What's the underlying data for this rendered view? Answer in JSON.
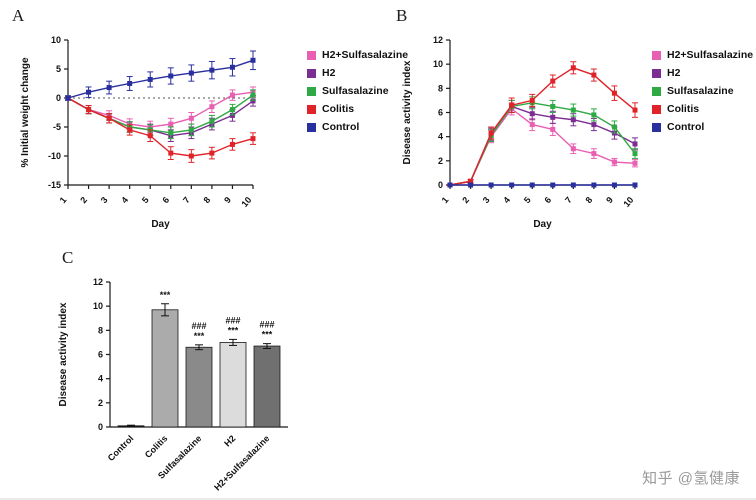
{
  "figure": {
    "panels": {
      "a": "A",
      "b": "B",
      "c": "C"
    },
    "watermark": "知乎 @氢健康"
  },
  "chart_data": [
    {
      "id": "A",
      "type": "line",
      "xlabel": "Day",
      "ylabel": "% Initial weight change",
      "x": [
        1,
        2,
        3,
        4,
        5,
        6,
        7,
        8,
        9,
        10
      ],
      "ylim": [
        -15,
        10
      ],
      "yticks": [
        -15,
        -10,
        -5,
        0,
        5,
        10
      ],
      "zero_line": true,
      "legend_position": "right",
      "series": [
        {
          "name": "H2+Sulfasalazine",
          "color": "#e95fb2",
          "values": [
            0,
            -2,
            -3,
            -4.5,
            -5,
            -4.5,
            -3.5,
            -1.5,
            0.5,
            1
          ],
          "errors": [
            0.3,
            0.7,
            0.8,
            0.9,
            1,
            1,
            1,
            1,
            0.9,
            0.9
          ]
        },
        {
          "name": "H2",
          "color": "#7b2d92",
          "values": [
            0,
            -2,
            -3.5,
            -5,
            -5.5,
            -6.5,
            -6,
            -4.5,
            -3,
            -0.5
          ],
          "errors": [
            0.3,
            0.7,
            0.8,
            0.9,
            1,
            1,
            1,
            1,
            1,
            0.9
          ]
        },
        {
          "name": "Sulfasalazine",
          "color": "#2fa944",
          "values": [
            0,
            -2,
            -3.5,
            -5,
            -5.5,
            -6,
            -5.5,
            -4,
            -2,
            0.5
          ],
          "errors": [
            0.3,
            0.7,
            0.8,
            0.9,
            0.9,
            1,
            1,
            1,
            0.9,
            0.9
          ]
        },
        {
          "name": "Colitis",
          "color": "#e02329",
          "values": [
            0,
            -2,
            -3.5,
            -5.5,
            -6.5,
            -9.5,
            -10,
            -9.5,
            -8,
            -7
          ],
          "errors": [
            0.3,
            0.7,
            0.8,
            0.9,
            1,
            1.1,
            1.1,
            1,
            1,
            1
          ]
        },
        {
          "name": "Control",
          "color": "#2a2f9e",
          "values": [
            0,
            1,
            1.8,
            2.5,
            3.2,
            3.8,
            4.3,
            4.8,
            5.3,
            6.5
          ],
          "errors": [
            0.4,
            0.9,
            1.1,
            1.2,
            1.3,
            1.4,
            1.4,
            1.5,
            1.5,
            1.6
          ]
        }
      ]
    },
    {
      "id": "B",
      "type": "line",
      "xlabel": "Day",
      "ylabel": "Disease activity index",
      "x": [
        1,
        2,
        3,
        4,
        5,
        6,
        7,
        8,
        9,
        10
      ],
      "ylim": [
        0,
        12
      ],
      "yticks": [
        0,
        2,
        4,
        6,
        8,
        10,
        12
      ],
      "zero_line": false,
      "legend_position": "right",
      "series": [
        {
          "name": "H2+Sulfasalazine",
          "color": "#e95fb2",
          "values": [
            0,
            0.3,
            4,
            6.3,
            5,
            4.6,
            3,
            2.6,
            1.9,
            1.8
          ],
          "errors": [
            0.05,
            0.15,
            0.5,
            0.5,
            0.5,
            0.5,
            0.4,
            0.4,
            0.3,
            0.3
          ]
        },
        {
          "name": "H2",
          "color": "#7b2d92",
          "values": [
            0,
            0.3,
            4.2,
            6.5,
            5.9,
            5.6,
            5.4,
            5,
            4.3,
            3.4
          ],
          "errors": [
            0.05,
            0.15,
            0.5,
            0.5,
            0.5,
            0.5,
            0.5,
            0.5,
            0.5,
            0.5
          ]
        },
        {
          "name": "Sulfasalazine",
          "color": "#2fa944",
          "values": [
            0,
            0.3,
            4.1,
            6.5,
            6.8,
            6.5,
            6.2,
            5.8,
            4.8,
            2.6
          ],
          "errors": [
            0.05,
            0.15,
            0.5,
            0.5,
            0.5,
            0.5,
            0.5,
            0.5,
            0.5,
            0.4
          ]
        },
        {
          "name": "Colitis",
          "color": "#e02329",
          "values": [
            0,
            0.3,
            4.3,
            6.6,
            7,
            8.6,
            9.7,
            9.1,
            7.6,
            6.2
          ],
          "errors": [
            0.05,
            0.15,
            0.5,
            0.6,
            0.5,
            0.5,
            0.5,
            0.5,
            0.6,
            0.6
          ]
        },
        {
          "name": "Control",
          "color": "#2a2f9e",
          "values": [
            0,
            0,
            0,
            0,
            0,
            0,
            0,
            0,
            0,
            0
          ],
          "errors": [
            0,
            0,
            0,
            0,
            0,
            0,
            0,
            0,
            0,
            0
          ]
        }
      ]
    },
    {
      "id": "C",
      "type": "bar",
      "xlabel": "",
      "ylabel": "Disease activity index",
      "ylim": [
        0,
        12
      ],
      "yticks": [
        0,
        2,
        4,
        6,
        8,
        10,
        12
      ],
      "categories": [
        "Control",
        "Colitis",
        "Sulfasalazine",
        "H2",
        "H2+Sulfasalazine"
      ],
      "values": [
        0.1,
        9.7,
        6.6,
        7.0,
        6.7
      ],
      "errors": [
        0.05,
        0.5,
        0.2,
        0.25,
        0.2
      ],
      "bar_colors": [
        "#111111",
        "#ababab",
        "#8a8a8a",
        "#dcdcdc",
        "#707070"
      ],
      "annotations": [
        "",
        "***",
        "###\n***",
        "###\n***",
        "###\n***"
      ]
    }
  ]
}
